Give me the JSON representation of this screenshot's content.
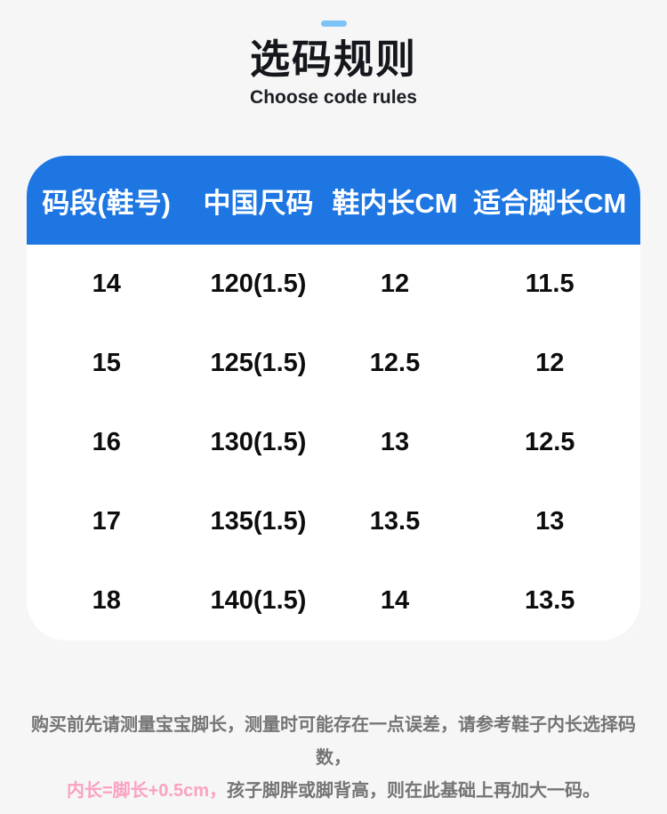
{
  "colors": {
    "page_background": "#f6f6f6",
    "accent_blue": "#1E76E2",
    "accent_light_blue": "#7EC3F8",
    "highlight_pink": "#F9A2C2",
    "note_gray": "#747474"
  },
  "header": {
    "title": "选码规则",
    "subtitle": "Choose code rules"
  },
  "chart_data": {
    "type": "table",
    "title": "选码规则",
    "subtitle": "Choose code rules",
    "columns": [
      "码段(鞋号)",
      "中国尺码",
      "鞋内长CM",
      "适合脚长CM"
    ],
    "rows": [
      [
        "14",
        "120(1.5)",
        "12",
        "11.5"
      ],
      [
        "15",
        "125(1.5)",
        "12.5",
        "12"
      ],
      [
        "16",
        "130(1.5)",
        "13",
        "12.5"
      ],
      [
        "17",
        "135(1.5)",
        "13.5",
        "13"
      ],
      [
        "18",
        "140(1.5)",
        "14",
        "13.5"
      ]
    ]
  },
  "footer": {
    "line1": "购买前先请测量宝宝脚长，测量时可能存在一点误差，请参考鞋子内长选择码数，",
    "line2_highlight": "内长=脚长+0.5cm，",
    "line2_rest": "孩子脚胖或脚背高，则在此基础上再加大一码。"
  }
}
